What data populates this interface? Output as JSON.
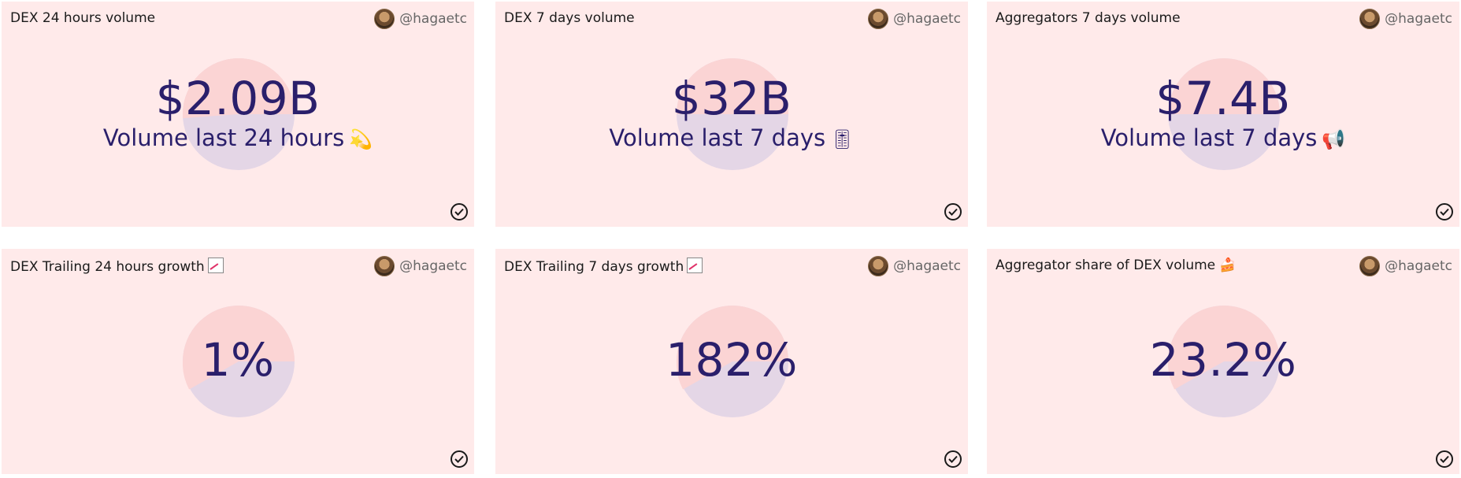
{
  "cards": [
    {
      "title": "DEX 24 hours volume",
      "author": "@hagaetc",
      "value": "$2.09B",
      "subtitle": "Volume last 24 hours",
      "subtitle_emoji": "💫"
    },
    {
      "title": "DEX 7 days volume",
      "author": "@hagaetc",
      "value": "$32B",
      "subtitle": "Volume last 7 days",
      "subtitle_emoji": "🎚"
    },
    {
      "title": "Aggregators 7 days volume",
      "author": "@hagaetc",
      "value": "$7.4B",
      "subtitle": "Volume last 7 days",
      "subtitle_emoji": "📢"
    },
    {
      "title": "DEX Trailing 24 hours growth",
      "author": "@hagaetc",
      "value": "1%"
    },
    {
      "title": "DEX Trailing 7 days growth",
      "author": "@hagaetc",
      "value": "182%"
    },
    {
      "title": "Aggregator share of DEX volume",
      "author": "@hagaetc",
      "value": "23.2%",
      "title_emoji": "🍰"
    }
  ],
  "colors": {
    "card_bg": "#ffeaea",
    "value_text": "#2a1f6b",
    "disc_top": "#fbd4d4",
    "disc_bottom": "#e4d6e6"
  }
}
